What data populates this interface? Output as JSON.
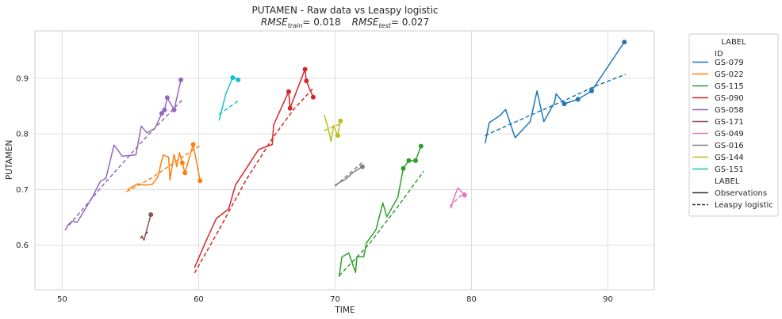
{
  "chart_data": {
    "type": "line",
    "title": "PUTAMEN - Raw data vs Leaspy logistic",
    "subtitle": {
      "train_label": "RMSE",
      "train_sub": "train",
      "train_value": "= 0.018",
      "test_label": "RMSE",
      "test_sub": "test",
      "test_value": "= 0.027"
    },
    "xlabel": "TIME",
    "ylabel": "PUTAMEN",
    "xlim": [
      48,
      93.4
    ],
    "ylim": [
      0.52,
      0.985
    ],
    "xticks": [
      50,
      60,
      70,
      80,
      90
    ],
    "yticks": [
      0.6,
      0.7,
      0.8,
      0.9
    ],
    "grid": true,
    "legend": {
      "placement": "outside-right",
      "title": "LABEL",
      "id_header": "ID",
      "style_header": "LABEL",
      "style_entries": [
        {
          "label": "Observations",
          "style": "solid"
        },
        {
          "label": "Leaspy logistic",
          "style": "dashed"
        }
      ]
    },
    "series": [
      {
        "name": "GS-079",
        "color": "#1f77b4",
        "obs": [
          [
            81.0,
            0.783
          ],
          [
            81.3,
            0.82
          ],
          [
            82.1,
            0.833
          ],
          [
            82.5,
            0.844
          ],
          [
            83.2,
            0.793
          ],
          [
            84.3,
            0.822
          ],
          [
            84.8,
            0.877
          ],
          [
            85.3,
            0.822
          ],
          [
            86.1,
            0.857
          ],
          [
            86.2,
            0.872
          ],
          [
            86.8,
            0.854
          ],
          [
            87.8,
            0.862
          ],
          [
            88.8,
            0.877
          ],
          [
            91.2,
            0.965
          ]
        ],
        "markers": [
          [
            86.8,
            0.854
          ],
          [
            87.8,
            0.862
          ],
          [
            88.8,
            0.877
          ],
          [
            91.2,
            0.965
          ]
        ],
        "fit": [
          [
            81.0,
            0.797
          ],
          [
            84.0,
            0.83
          ],
          [
            87.0,
            0.862
          ],
          [
            89.0,
            0.885
          ],
          [
            91.3,
            0.907
          ]
        ]
      },
      {
        "name": "GS-022",
        "color": "#ff7f0e",
        "obs": [
          [
            54.8,
            0.7
          ],
          [
            55.5,
            0.71
          ],
          [
            56.0,
            0.708
          ],
          [
            56.6,
            0.709
          ],
          [
            57.0,
            0.722
          ],
          [
            57.4,
            0.762
          ],
          [
            57.8,
            0.758
          ],
          [
            57.9,
            0.717
          ],
          [
            58.2,
            0.763
          ],
          [
            58.4,
            0.741
          ],
          [
            58.6,
            0.766
          ],
          [
            58.8,
            0.748
          ],
          [
            59.0,
            0.73
          ],
          [
            59.6,
            0.781
          ],
          [
            60.1,
            0.716
          ]
        ],
        "markers": [
          [
            58.8,
            0.748
          ],
          [
            59.0,
            0.73
          ],
          [
            59.6,
            0.781
          ],
          [
            60.1,
            0.716
          ]
        ],
        "fit": [
          [
            54.7,
            0.696
          ],
          [
            56.5,
            0.72
          ],
          [
            58.3,
            0.75
          ],
          [
            60.1,
            0.779
          ]
        ]
      },
      {
        "name": "GS-115",
        "color": "#2ca02c",
        "obs": [
          [
            70.3,
            0.543
          ],
          [
            70.5,
            0.579
          ],
          [
            71.0,
            0.586
          ],
          [
            71.5,
            0.551
          ],
          [
            71.6,
            0.579
          ],
          [
            72.1,
            0.579
          ],
          [
            72.3,
            0.604
          ],
          [
            73.0,
            0.628
          ],
          [
            73.5,
            0.676
          ],
          [
            73.8,
            0.651
          ],
          [
            74.6,
            0.686
          ],
          [
            75.0,
            0.738
          ],
          [
            75.4,
            0.752
          ],
          [
            75.9,
            0.752
          ],
          [
            76.3,
            0.778
          ]
        ],
        "markers": [
          [
            75.0,
            0.738
          ],
          [
            75.4,
            0.752
          ],
          [
            75.9,
            0.752
          ],
          [
            76.3,
            0.778
          ]
        ],
        "fit": [
          [
            70.3,
            0.545
          ],
          [
            72.5,
            0.602
          ],
          [
            74.5,
            0.666
          ],
          [
            76.5,
            0.733
          ]
        ]
      },
      {
        "name": "GS-090",
        "color": "#d62728",
        "obs": [
          [
            59.7,
            0.56
          ],
          [
            60.5,
            0.605
          ],
          [
            61.3,
            0.648
          ],
          [
            62.2,
            0.665
          ],
          [
            62.7,
            0.708
          ],
          [
            63.5,
            0.738
          ],
          [
            64.4,
            0.772
          ],
          [
            65.4,
            0.781
          ],
          [
            65.5,
            0.816
          ],
          [
            66.6,
            0.876
          ],
          [
            66.7,
            0.846
          ],
          [
            67.8,
            0.916
          ],
          [
            67.9,
            0.895
          ],
          [
            68.4,
            0.866
          ]
        ],
        "markers": [
          [
            66.6,
            0.876
          ],
          [
            66.7,
            0.846
          ],
          [
            67.8,
            0.916
          ],
          [
            67.9,
            0.895
          ],
          [
            68.4,
            0.866
          ]
        ],
        "fit": [
          [
            59.7,
            0.55
          ],
          [
            61.5,
            0.628
          ],
          [
            63.5,
            0.718
          ],
          [
            65.5,
            0.795
          ],
          [
            67.0,
            0.845
          ],
          [
            68.4,
            0.882
          ]
        ]
      },
      {
        "name": "GS-058",
        "color": "#9467bd",
        "obs": [
          [
            50.3,
            0.633
          ],
          [
            50.7,
            0.643
          ],
          [
            51.1,
            0.641
          ],
          [
            52.2,
            0.686
          ],
          [
            52.8,
            0.715
          ],
          [
            53.2,
            0.72
          ],
          [
            53.8,
            0.78
          ],
          [
            54.4,
            0.76
          ],
          [
            55.4,
            0.762
          ],
          [
            55.8,
            0.814
          ],
          [
            56.2,
            0.802
          ],
          [
            56.8,
            0.81
          ],
          [
            57.3,
            0.837
          ],
          [
            57.5,
            0.843
          ],
          [
            57.7,
            0.865
          ],
          [
            58.2,
            0.843
          ],
          [
            58.7,
            0.897
          ]
        ],
        "markers": [
          [
            57.3,
            0.837
          ],
          [
            57.5,
            0.843
          ],
          [
            57.7,
            0.865
          ],
          [
            58.2,
            0.843
          ],
          [
            58.7,
            0.897
          ]
        ],
        "fit": [
          [
            50.2,
            0.627
          ],
          [
            53.0,
            0.708
          ],
          [
            56.0,
            0.79
          ],
          [
            58.8,
            0.861
          ]
        ]
      },
      {
        "name": "GS-171",
        "color": "#8c564b",
        "obs": [
          [
            55.8,
            0.617
          ],
          [
            56.0,
            0.609
          ],
          [
            56.5,
            0.655
          ]
        ],
        "markers": [
          [
            56.5,
            0.655
          ]
        ],
        "fit": [
          [
            55.7,
            0.612
          ],
          [
            56.3,
            0.624
          ]
        ]
      },
      {
        "name": "GS-049",
        "color": "#e377c2",
        "obs": [
          [
            78.5,
            0.666
          ],
          [
            78.7,
            0.684
          ],
          [
            79.0,
            0.703
          ],
          [
            79.5,
            0.69
          ]
        ],
        "markers": [
          [
            79.5,
            0.69
          ]
        ],
        "fit": [
          [
            78.4,
            0.67
          ],
          [
            79.5,
            0.695
          ]
        ]
      },
      {
        "name": "GS-016",
        "color": "#7f7f7f",
        "obs": [
          [
            70.0,
            0.708
          ],
          [
            70.8,
            0.719
          ],
          [
            71.3,
            0.73
          ],
          [
            71.8,
            0.738
          ],
          [
            72.0,
            0.741
          ]
        ],
        "markers": [
          [
            72.0,
            0.741
          ]
        ],
        "fit": [
          [
            70.0,
            0.706
          ],
          [
            72.0,
            0.749
          ]
        ]
      },
      {
        "name": "GS-144",
        "color": "#bcbd22",
        "obs": [
          [
            69.2,
            0.834
          ],
          [
            69.5,
            0.81
          ],
          [
            69.7,
            0.786
          ],
          [
            69.9,
            0.815
          ],
          [
            70.2,
            0.797
          ],
          [
            70.4,
            0.823
          ]
        ],
        "markers": [
          [
            70.2,
            0.797
          ],
          [
            70.4,
            0.823
          ]
        ],
        "fit": [
          [
            69.2,
            0.806
          ],
          [
            70.4,
            0.818
          ]
        ]
      },
      {
        "name": "GS-151",
        "color": "#17becf",
        "obs": [
          [
            61.5,
            0.824
          ],
          [
            62.0,
            0.872
          ],
          [
            62.5,
            0.901
          ],
          [
            62.9,
            0.897
          ]
        ],
        "markers": [
          [
            62.5,
            0.901
          ],
          [
            62.9,
            0.897
          ]
        ],
        "fit": [
          [
            61.5,
            0.835
          ],
          [
            63.0,
            0.861
          ]
        ]
      }
    ]
  }
}
